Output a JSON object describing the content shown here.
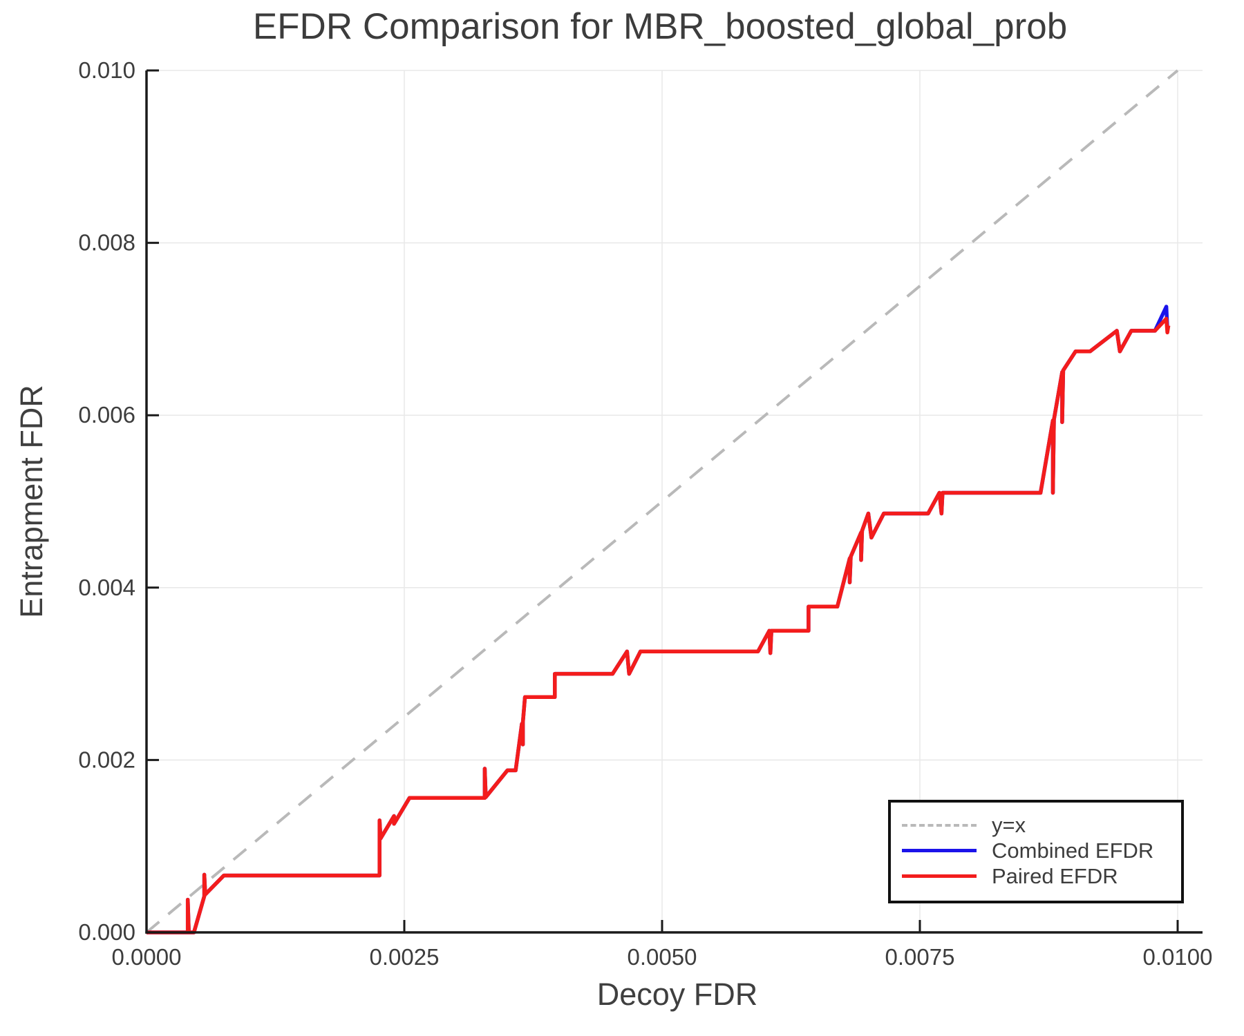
{
  "colors": {
    "combined_blue": "#1b13ea",
    "paired_red": "#f31c1c",
    "identity_gray": "#b9b9b9",
    "grid": "#e9e9e9",
    "axis": "#1a1a1a",
    "text": "#3d3d3d"
  },
  "chart_data": {
    "type": "line",
    "title": "EFDR Comparison for MBR_boosted_global_prob",
    "xlabel": "Decoy FDR",
    "ylabel": "Entrapment FDR",
    "xlim": [
      0,
      0.01023
    ],
    "ylim": [
      0,
      0.01
    ],
    "grid": true,
    "legend_position": "bottom-right",
    "xticks": {
      "values": [
        0.0,
        0.0025,
        0.005,
        0.0075,
        0.01
      ],
      "labels": [
        "0.0000",
        "0.0025",
        "0.0050",
        "0.0075",
        "0.0100"
      ]
    },
    "yticks": {
      "values": [
        0.0,
        0.002,
        0.004,
        0.006,
        0.008,
        0.01
      ],
      "labels": [
        "0.000",
        "0.002",
        "0.004",
        "0.006",
        "0.008",
        "0.010"
      ]
    },
    "series": [
      {
        "name": "y=x",
        "style": "dashed",
        "color": "#b9b9b9",
        "points": [
          [
            0,
            0
          ],
          [
            0.01,
            0.01
          ]
        ]
      },
      {
        "name": "Combined EFDR",
        "style": "solid",
        "color": "#1b13ea",
        "points": [
          [
            0.0,
            0.0
          ],
          [
            0.0004,
            0.0
          ],
          [
            0.0004,
            0.00038
          ],
          [
            0.00041,
            0.0
          ],
          [
            0.00046,
            0.0
          ],
          [
            0.00056,
            0.00042
          ],
          [
            0.00056,
            0.00067
          ],
          [
            0.00057,
            0.00044
          ],
          [
            0.00075,
            0.00066
          ],
          [
            0.00226,
            0.00066
          ],
          [
            0.00226,
            0.0013
          ],
          [
            0.00227,
            0.00109
          ],
          [
            0.0024,
            0.00135
          ],
          [
            0.0024,
            0.00126
          ],
          [
            0.00255,
            0.00156
          ],
          [
            0.00328,
            0.00156
          ],
          [
            0.00328,
            0.0019
          ],
          [
            0.00329,
            0.00157
          ],
          [
            0.0035,
            0.00188
          ],
          [
            0.00358,
            0.00188
          ],
          [
            0.00364,
            0.00242
          ],
          [
            0.00365,
            0.00218
          ],
          [
            0.00365,
            0.00244
          ],
          [
            0.00367,
            0.00273
          ],
          [
            0.00396,
            0.00273
          ],
          [
            0.00396,
            0.003
          ],
          [
            0.00452,
            0.003
          ],
          [
            0.00466,
            0.00326
          ],
          [
            0.00468,
            0.003
          ],
          [
            0.00479,
            0.00326
          ],
          [
            0.00593,
            0.00326
          ],
          [
            0.00604,
            0.0035
          ],
          [
            0.00605,
            0.00324
          ],
          [
            0.00606,
            0.0035
          ],
          [
            0.00642,
            0.0035
          ],
          [
            0.00642,
            0.00378
          ],
          [
            0.0067,
            0.00378
          ],
          [
            0.00682,
            0.00434
          ],
          [
            0.00682,
            0.00406
          ],
          [
            0.00683,
            0.00436
          ],
          [
            0.00693,
            0.00464
          ],
          [
            0.00693,
            0.00432
          ],
          [
            0.00694,
            0.00466
          ],
          [
            0.007,
            0.00486
          ],
          [
            0.00703,
            0.00458
          ],
          [
            0.00715,
            0.00486
          ],
          [
            0.00758,
            0.00486
          ],
          [
            0.00769,
            0.0051
          ],
          [
            0.00771,
            0.00486
          ],
          [
            0.00772,
            0.0051
          ],
          [
            0.00867,
            0.0051
          ],
          [
            0.00879,
            0.00594
          ],
          [
            0.00879,
            0.0051
          ],
          [
            0.0088,
            0.00595
          ],
          [
            0.00888,
            0.0065
          ],
          [
            0.00888,
            0.00592
          ],
          [
            0.00889,
            0.00652
          ],
          [
            0.00901,
            0.00674
          ],
          [
            0.00915,
            0.00674
          ],
          [
            0.00941,
            0.00698
          ],
          [
            0.00944,
            0.00674
          ],
          [
            0.00955,
            0.00698
          ],
          [
            0.00978,
            0.00698
          ],
          [
            0.00989,
            0.00726
          ],
          [
            0.0099,
            0.007
          ],
          [
            0.00991,
            0.00704
          ]
        ]
      },
      {
        "name": "Paired EFDR",
        "style": "solid",
        "color": "#f31c1c",
        "points": [
          [
            0.0,
            0.0
          ],
          [
            0.0004,
            0.0
          ],
          [
            0.0004,
            0.00038
          ],
          [
            0.00041,
            0.0
          ],
          [
            0.00046,
            0.0
          ],
          [
            0.00056,
            0.00042
          ],
          [
            0.00056,
            0.00067
          ],
          [
            0.00057,
            0.00044
          ],
          [
            0.00075,
            0.00066
          ],
          [
            0.00226,
            0.00066
          ],
          [
            0.00226,
            0.0013
          ],
          [
            0.00227,
            0.00109
          ],
          [
            0.0024,
            0.00135
          ],
          [
            0.0024,
            0.00126
          ],
          [
            0.00255,
            0.00156
          ],
          [
            0.00328,
            0.00156
          ],
          [
            0.00328,
            0.0019
          ],
          [
            0.00329,
            0.00157
          ],
          [
            0.0035,
            0.00188
          ],
          [
            0.00358,
            0.00188
          ],
          [
            0.00364,
            0.00242
          ],
          [
            0.00365,
            0.00218
          ],
          [
            0.00365,
            0.00244
          ],
          [
            0.00367,
            0.00273
          ],
          [
            0.00396,
            0.00273
          ],
          [
            0.00396,
            0.003
          ],
          [
            0.00452,
            0.003
          ],
          [
            0.00466,
            0.00326
          ],
          [
            0.00468,
            0.003
          ],
          [
            0.00479,
            0.00326
          ],
          [
            0.00593,
            0.00326
          ],
          [
            0.00604,
            0.0035
          ],
          [
            0.00605,
            0.00324
          ],
          [
            0.00606,
            0.0035
          ],
          [
            0.00642,
            0.0035
          ],
          [
            0.00642,
            0.00378
          ],
          [
            0.0067,
            0.00378
          ],
          [
            0.00682,
            0.00434
          ],
          [
            0.00682,
            0.00406
          ],
          [
            0.00683,
            0.00436
          ],
          [
            0.00693,
            0.00464
          ],
          [
            0.00693,
            0.00432
          ],
          [
            0.00694,
            0.00466
          ],
          [
            0.007,
            0.00486
          ],
          [
            0.00703,
            0.00458
          ],
          [
            0.00715,
            0.00486
          ],
          [
            0.00758,
            0.00486
          ],
          [
            0.00769,
            0.0051
          ],
          [
            0.00771,
            0.00486
          ],
          [
            0.00772,
            0.0051
          ],
          [
            0.00867,
            0.0051
          ],
          [
            0.00879,
            0.00594
          ],
          [
            0.00879,
            0.0051
          ],
          [
            0.0088,
            0.00595
          ],
          [
            0.00888,
            0.0065
          ],
          [
            0.00888,
            0.00592
          ],
          [
            0.00889,
            0.00652
          ],
          [
            0.00901,
            0.00674
          ],
          [
            0.00915,
            0.00674
          ],
          [
            0.00941,
            0.00698
          ],
          [
            0.00944,
            0.00674
          ],
          [
            0.00955,
            0.00698
          ],
          [
            0.00978,
            0.00698
          ],
          [
            0.00989,
            0.00712
          ],
          [
            0.0099,
            0.00696
          ],
          [
            0.00991,
            0.00704
          ]
        ]
      }
    ]
  }
}
